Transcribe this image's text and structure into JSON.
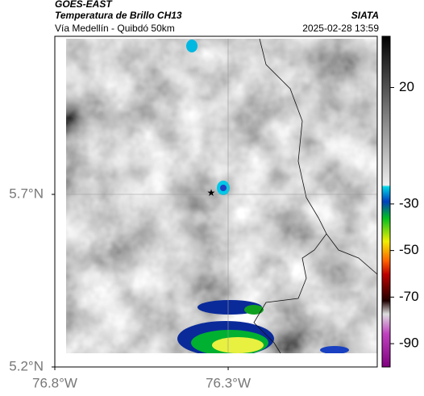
{
  "header": {
    "source": "GOES-EAST",
    "title": "Temperatura de Brillo CH13",
    "subtitle": "Vía Medellín - Quibdó 50km",
    "brand": "SIATA",
    "timestamp": "2025-02-28 13:59"
  },
  "map": {
    "lon_range": [
      -76.8,
      -75.87
    ],
    "lat_range": [
      5.2,
      6.158
    ],
    "lon_ticks": [
      {
        "value": -76.8,
        "label": "76.8°W"
      },
      {
        "value": -76.3,
        "label": "76.3°W"
      }
    ],
    "lat_ticks": [
      {
        "value": 5.7,
        "label": "5.7°N"
      },
      {
        "value": 5.2,
        "label": "5.2°N"
      }
    ]
  },
  "colorbar": {
    "range": [
      -100,
      42
    ],
    "ticks": [
      20,
      -30,
      -50,
      -70,
      -90
    ]
  }
}
